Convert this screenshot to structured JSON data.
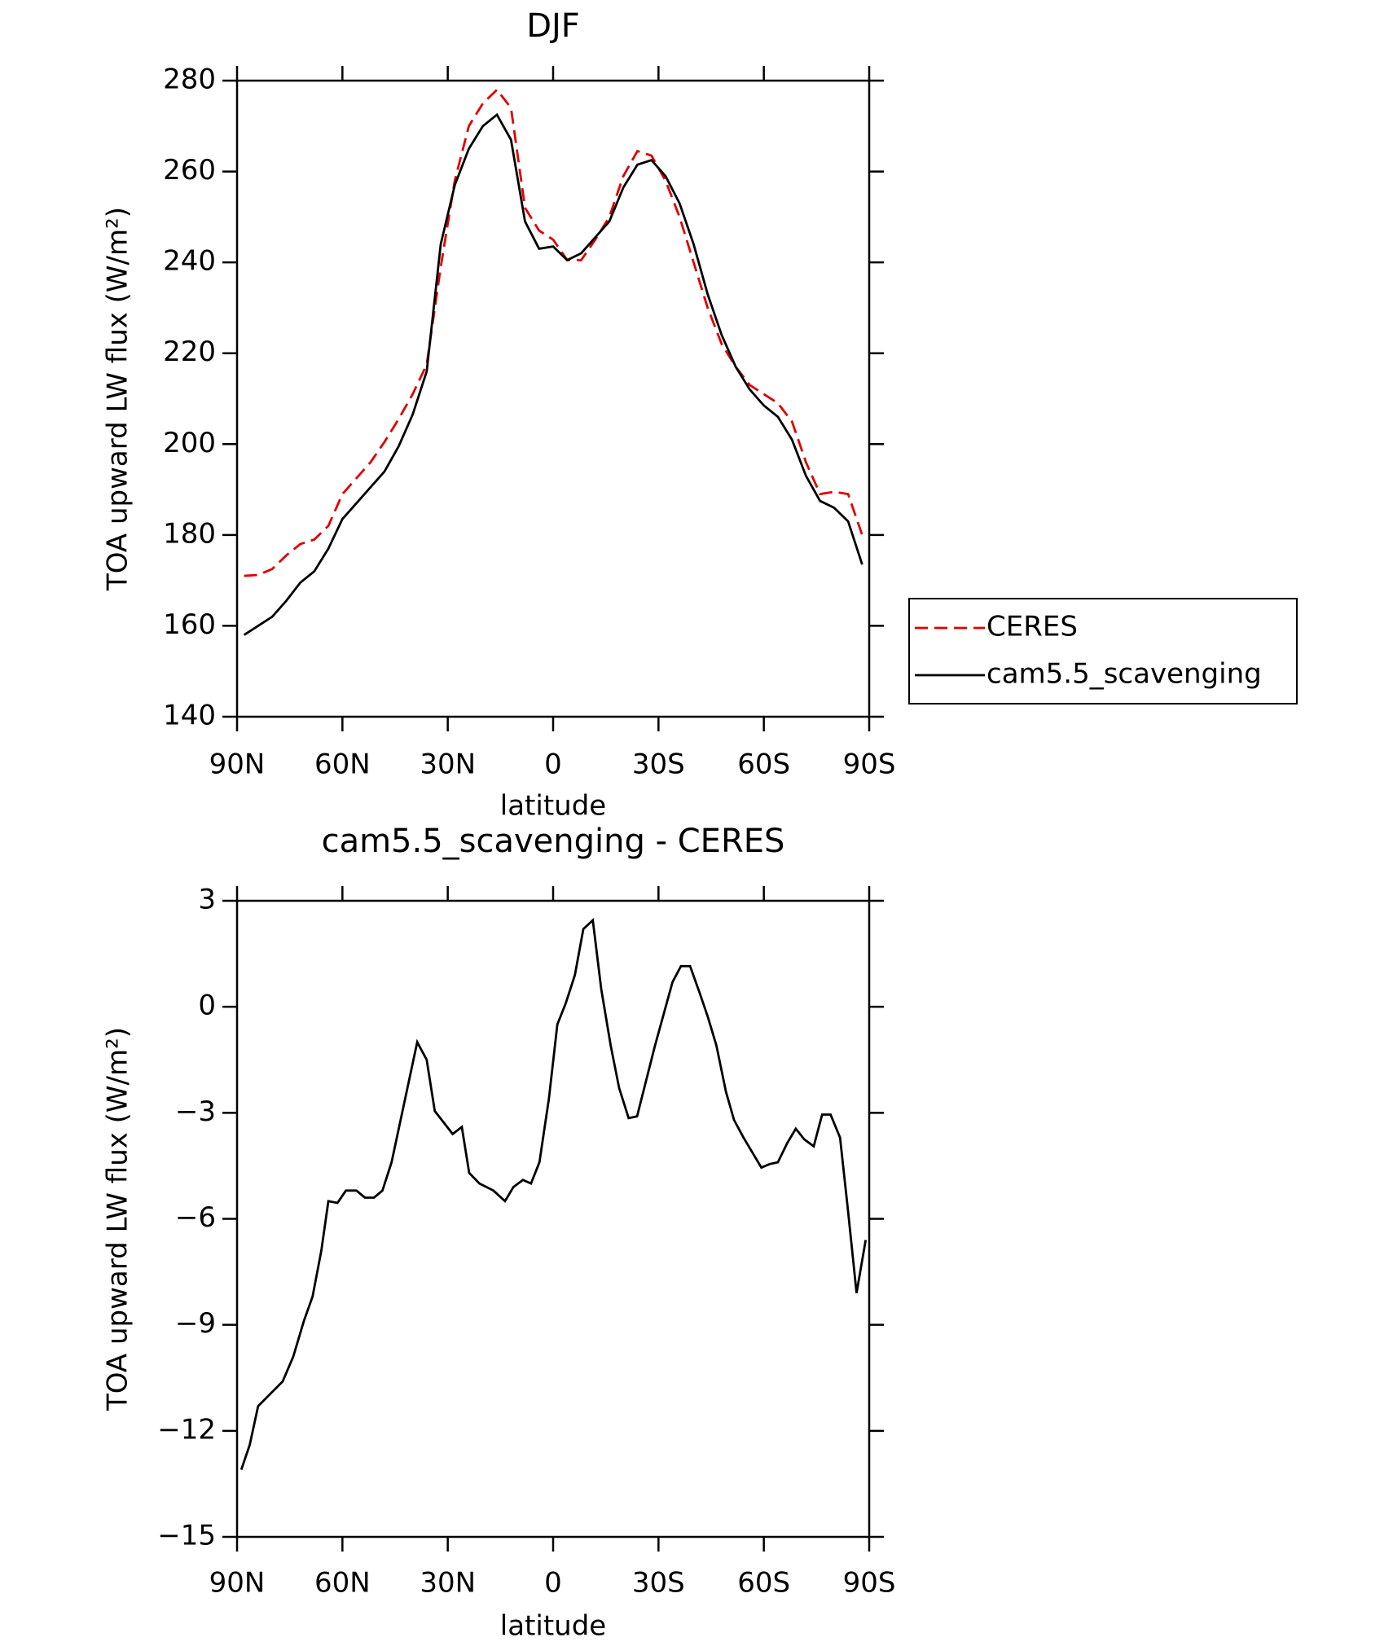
{
  "chart_data": [
    {
      "type": "line",
      "title": "DJF",
      "x_label": "latitude",
      "y_label": "TOA upward LW flux (W/m²)",
      "x": [
        88,
        84,
        80,
        76,
        72,
        68,
        64,
        60,
        56,
        52,
        48,
        44,
        40,
        36,
        32,
        28,
        24,
        20,
        16,
        12,
        8,
        4,
        0,
        -4,
        -8,
        -12,
        -16,
        -20,
        -24,
        -28,
        -32,
        -36,
        -40,
        -44,
        -48,
        -52,
        -56,
        -60,
        -64,
        -68,
        -72,
        -76,
        -80,
        -84,
        -88
      ],
      "xlim": [
        90,
        -90
      ],
      "xticks": [
        {
          "value": 90,
          "label": "90N"
        },
        {
          "value": 60,
          "label": "60N"
        },
        {
          "value": 30,
          "label": "30N"
        },
        0,
        {
          "value": -30,
          "label": "30S"
        },
        {
          "value": -60,
          "label": "60S"
        },
        {
          "value": -90,
          "label": "90S"
        }
      ],
      "ylim": [
        140,
        280
      ],
      "yticks": [
        140,
        160,
        180,
        200,
        220,
        240,
        260,
        280
      ],
      "legend": "outside-right",
      "series": [
        {
          "name": "CERES",
          "color": "#e00000",
          "dash": true,
          "values": [
            171,
            171.2,
            172.5,
            175.5,
            178,
            179,
            182,
            189,
            192.5,
            196,
            200.5,
            205.5,
            211,
            217.5,
            239,
            258,
            270,
            275,
            278,
            274,
            252,
            247,
            245,
            240.5,
            240.5,
            245,
            250,
            259,
            264.5,
            263.5,
            258,
            250,
            240,
            230,
            222,
            217,
            213,
            211,
            209,
            205,
            196,
            189,
            189.5,
            189,
            180
          ]
        },
        {
          "name": "cam5.5_scavenging",
          "color": "#000000",
          "dash": false,
          "values": [
            158,
            160,
            162,
            165.5,
            169.5,
            172,
            177,
            183.5,
            187,
            190.5,
            194,
            199.5,
            206.5,
            216,
            244,
            257,
            265,
            270,
            272.5,
            267,
            249,
            243,
            243.5,
            240.5,
            242,
            245.5,
            249,
            256.5,
            261.5,
            262.5,
            259,
            253,
            244,
            233,
            224,
            217,
            212,
            208.5,
            206,
            201,
            193,
            187.5,
            186,
            183,
            173.5
          ]
        }
      ]
    },
    {
      "type": "line",
      "title": "cam5.5_scavenging - CERES",
      "x_label": "latitude",
      "y_label": "TOA upward LW flux (W/m²)",
      "x": [
        88.8,
        86.4,
        84,
        81,
        77,
        74,
        71,
        68.5,
        66,
        64,
        61.4,
        59,
        56,
        53.6,
        51,
        48.6,
        46,
        38.7,
        36,
        33.7,
        28.6,
        26,
        23.9,
        21,
        17,
        13.7,
        11.3,
        8.6,
        6.3,
        3.9,
        1.2,
        -1.2,
        -3.6,
        -6.2,
        -8.6,
        -11.3,
        -13.7,
        -16.4,
        -18.8,
        -21.5,
        -23.9,
        -29,
        -34,
        -36.4,
        -39,
        -41.7,
        -44.1,
        -46.5,
        -49.2,
        -51.5,
        -54.2,
        -56.6,
        -59.3,
        -61.7,
        -64,
        -66.7,
        -69.1,
        -71.5,
        -74.2,
        -76.6,
        -79,
        -81.7,
        -84,
        -86.4,
        -89
      ],
      "xlim": [
        90,
        -90
      ],
      "xticks": [
        {
          "value": 90,
          "label": "90N"
        },
        {
          "value": 60,
          "label": "60N"
        },
        {
          "value": 30,
          "label": "30N"
        },
        0,
        {
          "value": -30,
          "label": "30S"
        },
        {
          "value": -60,
          "label": "60S"
        },
        {
          "value": -90,
          "label": "90S"
        }
      ],
      "ylim": [
        -15,
        3
      ],
      "yticks": [
        {
          "value": -15,
          "label": "−15"
        },
        {
          "value": -12,
          "label": "−12"
        },
        {
          "value": -9,
          "label": "−9"
        },
        {
          "value": -6,
          "label": "−6"
        },
        {
          "value": -3,
          "label": "−3"
        },
        0,
        3
      ],
      "series": [
        {
          "color": "#000000",
          "dash": false,
          "values": [
            -13.1,
            -12.4,
            -11.3,
            -11.0,
            -10.6,
            -9.9,
            -8.9,
            -8.2,
            -6.9,
            -5.5,
            -5.55,
            -5.2,
            -5.2,
            -5.4,
            -5.4,
            -5.2,
            -4.4,
            -1.0,
            -1.5,
            -2.95,
            -3.6,
            -3.4,
            -4.7,
            -5.0,
            -5.2,
            -5.5,
            -5.1,
            -4.9,
            -5.0,
            -4.4,
            -2.6,
            -0.5,
            0.1,
            0.9,
            2.2,
            2.45,
            0.5,
            -1.1,
            -2.3,
            -3.15,
            -3.1,
            -1.1,
            0.7,
            1.15,
            1.15,
            0.4,
            -0.3,
            -1.1,
            -2.4,
            -3.2,
            -3.7,
            -4.1,
            -4.55,
            -4.45,
            -4.4,
            -3.85,
            -3.45,
            -3.75,
            -3.95,
            -3.05,
            -3.05,
            -3.7,
            -5.8,
            -8.1,
            -6.6
          ]
        }
      ]
    }
  ]
}
